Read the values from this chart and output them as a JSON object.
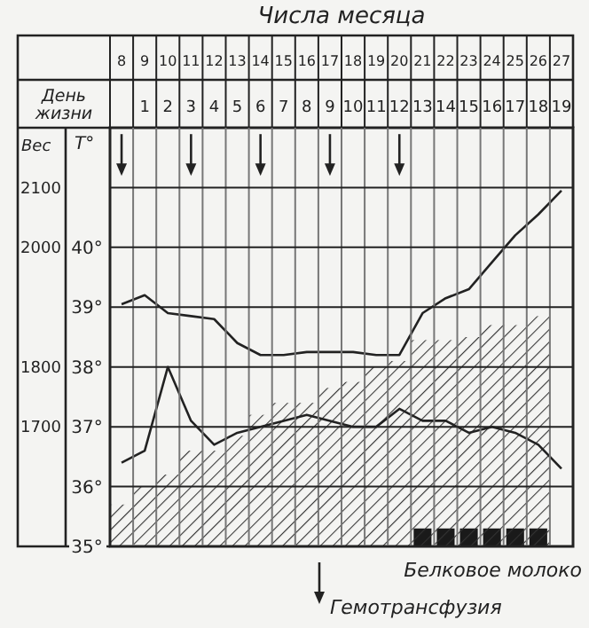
{
  "chart_data": {
    "type": "line",
    "title": "Числа месяца",
    "x2label": "День жизни",
    "ylabel": "T°",
    "y2label": "Вес",
    "categories": [
      "8",
      "9",
      "10",
      "11",
      "12",
      "13",
      "14",
      "15",
      "16",
      "17",
      "18",
      "19",
      "20",
      "21",
      "22",
      "23",
      "24",
      "25",
      "26",
      "27"
    ],
    "x2lim": [
      -0.5,
      19.5
    ],
    "x2ticks": [
      1,
      2,
      3,
      4,
      5,
      6,
      7,
      8,
      9,
      10,
      11,
      12,
      13,
      14,
      15,
      16,
      17,
      18,
      19
    ],
    "ylim": [
      35,
      42
    ],
    "yticks": [
      {
        "value": 35,
        "label": "35°"
      },
      {
        "value": 36,
        "label": "36°"
      },
      {
        "value": 37,
        "label": "37°"
      },
      {
        "value": 38,
        "label": "38°"
      },
      {
        "value": 39,
        "label": "39°"
      },
      {
        "value": 40,
        "label": "40°"
      },
      {
        "value": 41,
        "label": null
      }
    ],
    "y2lim": [
      1500,
      2200
    ],
    "y2ticks": [
      1700,
      1800,
      2000,
      2100
    ],
    "grid": true,
    "legend": "bottom right",
    "series": [
      {
        "type": "bar",
        "name": "Белковое молоко",
        "color": "#1a1a1a",
        "values": [
          null,
          null,
          null,
          null,
          null,
          null,
          null,
          null,
          null,
          null,
          null,
          null,
          null,
          35.3,
          35.3,
          35.3,
          35.3,
          35.3,
          35.3,
          null
        ]
      },
      {
        "type": "bar",
        "color": "#333333",
        "values": [
          35.7,
          36.0,
          36.2,
          36.6,
          36.6,
          36.85,
          37.2,
          37.4,
          37.4,
          37.65,
          37.75,
          38.0,
          38.1,
          38.45,
          38.45,
          38.5,
          38.7,
          38.7,
          38.85,
          null
        ]
      },
      {
        "axis": "y2",
        "color": "#222222",
        "values": [
          1905,
          1920,
          1890,
          1885,
          1880,
          1840,
          1820,
          1820,
          1825,
          1825,
          1825,
          1820,
          1820,
          1890,
          1915,
          1930,
          1975,
          2020,
          2055,
          2095
        ]
      },
      {
        "color": "#222222",
        "values": [
          36.4,
          36.6,
          38.0,
          37.1,
          36.7,
          36.9,
          37.0,
          37.1,
          37.2,
          37.1,
          37.0,
          37.0,
          37.3,
          37.1,
          37.1,
          36.9,
          37.0,
          36.9,
          36.7,
          36.3
        ]
      },
      {
        "type": "scatter",
        "name": "Гемотрансфузия",
        "marker": "triangle",
        "color": "#222222",
        "values": [
          41.3,
          null,
          null,
          41.3,
          null,
          null,
          41.3,
          null,
          null,
          41.3,
          null,
          null,
          41.3,
          null,
          null,
          null,
          null,
          null,
          null,
          null
        ]
      }
    ]
  }
}
